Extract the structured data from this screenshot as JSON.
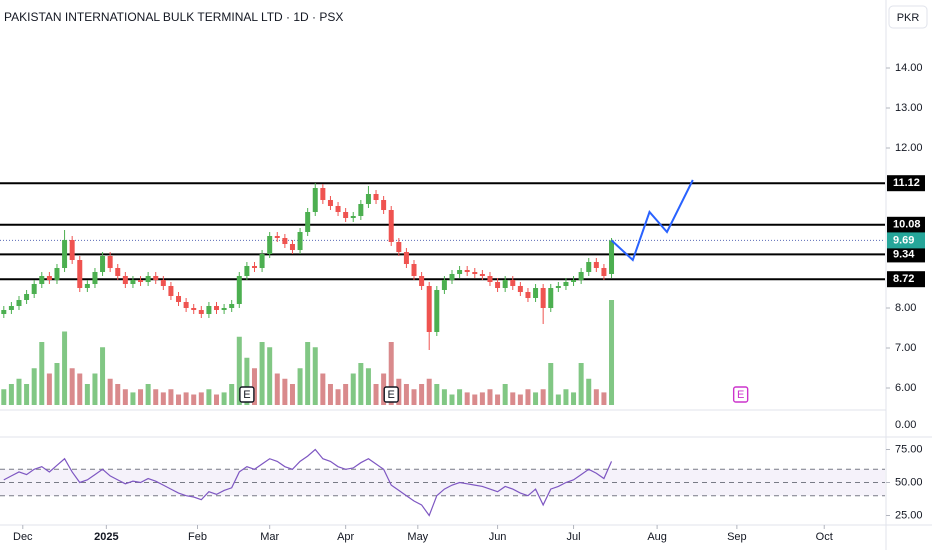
{
  "chart_data": {
    "type": "candlestick",
    "title": "PAKISTAN INTERNATIONAL BULK TERMINAL LTD · 1D · PSX",
    "currency": "PKR",
    "up_color": "#4caf50",
    "down_color": "#ef5350",
    "volume_up_color": "#81c784",
    "volume_down_color": "#d98a8c",
    "rsi_color": "#7e57c2",
    "level_color": "#000000",
    "last_color": "#26a69a",
    "projection_color": "#2962ff",
    "xlim": [
      -0.5,
      116
    ],
    "xticks": [
      {
        "value": 2.5,
        "label": "Dec"
      },
      {
        "value": 13.5,
        "label": "2025"
      },
      {
        "value": 25.5,
        "label": "Feb"
      },
      {
        "value": 35,
        "label": "Mar"
      },
      {
        "value": 45,
        "label": "Apr"
      },
      {
        "value": 54.5,
        "label": "May"
      },
      {
        "value": 65,
        "label": "Jun"
      },
      {
        "value": 75,
        "label": "Jul"
      },
      {
        "value": 86,
        "label": "Aug"
      },
      {
        "value": 96.5,
        "label": "Sep"
      },
      {
        "value": 108,
        "label": "Oct"
      }
    ],
    "ylim": [
      5.5,
      14.95
    ],
    "yticks": [
      {
        "value": 14,
        "label": "14.00"
      },
      {
        "value": 13,
        "label": "13.00"
      },
      {
        "value": 12,
        "label": "12.00"
      },
      {
        "value": 8,
        "label": "8.00"
      },
      {
        "value": 7,
        "label": "7.00"
      },
      {
        "value": 6,
        "label": "6.00"
      }
    ],
    "volume_ylim": [
      0,
      1
    ],
    "volume_ticks": [
      {
        "value": 0,
        "label": "0.00"
      }
    ],
    "rsi_ylim": [
      17.8,
      82.2
    ],
    "rsi_ticks": [
      {
        "value": 75,
        "label": "75.00"
      },
      {
        "value": 50,
        "label": "50.00"
      },
      {
        "value": 25,
        "label": "25.00"
      }
    ],
    "rsi_bands": [
      40,
      50,
      60
    ],
    "levels": [
      11.12,
      10.08,
      9.34,
      8.72
    ],
    "last": 9.69,
    "open": [
      7.85,
      7.95,
      8.05,
      8.2,
      8.35,
      8.6,
      8.8,
      8.7,
      9.0,
      9.7,
      9.2,
      8.5,
      8.6,
      8.9,
      9.3,
      9.0,
      8.8,
      8.6,
      8.7,
      8.65,
      8.8,
      8.7,
      8.55,
      8.3,
      8.15,
      8.0,
      7.95,
      7.85,
      8.05,
      7.95,
      8.0,
      8.1,
      8.8,
      9.05,
      9.0,
      9.35,
      9.8,
      9.75,
      9.6,
      9.45,
      9.9,
      10.4,
      11.0,
      10.7,
      10.55,
      10.4,
      10.25,
      10.3,
      10.6,
      10.85,
      10.7,
      10.45,
      9.65,
      9.4,
      9.1,
      8.8,
      8.55,
      7.4,
      8.45,
      8.7,
      8.85,
      8.95,
      8.9,
      8.85,
      8.8,
      8.65,
      8.5,
      8.7,
      8.55,
      8.4,
      8.25,
      8.5,
      8.0,
      8.5,
      8.55,
      8.65,
      8.7,
      8.9,
      9.15,
      9.0,
      8.85
    ],
    "high": [
      8.05,
      8.15,
      8.3,
      8.45,
      8.7,
      8.9,
      8.9,
      9.1,
      9.95,
      9.8,
      9.3,
      8.7,
      9.0,
      9.4,
      9.4,
      9.1,
      8.9,
      8.8,
      8.8,
      8.9,
      8.9,
      8.8,
      8.65,
      8.4,
      8.25,
      8.1,
      8.05,
      8.15,
      8.15,
      8.1,
      8.2,
      8.9,
      9.15,
      9.15,
      9.45,
      9.9,
      9.9,
      9.85,
      9.7,
      10.0,
      10.5,
      11.12,
      11.1,
      10.8,
      10.65,
      10.5,
      10.4,
      10.7,
      11.05,
      10.95,
      10.8,
      10.55,
      9.75,
      9.5,
      9.2,
      8.9,
      8.65,
      8.55,
      8.8,
      8.95,
      9.05,
      9.05,
      9.0,
      8.95,
      8.9,
      8.75,
      8.8,
      8.8,
      8.65,
      8.5,
      8.6,
      8.6,
      8.6,
      8.65,
      8.75,
      8.8,
      9.0,
      9.25,
      9.25,
      9.1,
      9.75
    ],
    "low": [
      7.75,
      7.85,
      7.95,
      8.1,
      8.25,
      8.5,
      8.6,
      8.6,
      8.9,
      9.1,
      8.4,
      8.4,
      8.5,
      8.8,
      8.9,
      8.7,
      8.5,
      8.5,
      8.55,
      8.55,
      8.6,
      8.45,
      8.2,
      8.05,
      7.9,
      7.85,
      7.75,
      7.75,
      7.85,
      7.85,
      7.9,
      8.0,
      8.7,
      8.9,
      8.9,
      9.25,
      9.65,
      9.5,
      9.35,
      9.35,
      9.8,
      10.3,
      10.6,
      10.45,
      10.3,
      10.15,
      10.15,
      10.2,
      10.5,
      10.6,
      10.35,
      9.55,
      9.3,
      9.0,
      8.7,
      8.45,
      6.95,
      7.3,
      8.35,
      8.6,
      8.75,
      8.8,
      8.75,
      8.7,
      8.55,
      8.4,
      8.4,
      8.45,
      8.3,
      8.15,
      8.15,
      7.6,
      7.9,
      8.4,
      8.45,
      8.55,
      8.6,
      8.8,
      8.9,
      8.7,
      8.75
    ],
    "close": [
      7.95,
      8.05,
      8.2,
      8.35,
      8.6,
      8.8,
      8.7,
      9.0,
      9.7,
      9.2,
      8.5,
      8.6,
      8.9,
      9.3,
      9.0,
      8.8,
      8.6,
      8.7,
      8.65,
      8.8,
      8.7,
      8.55,
      8.3,
      8.15,
      8.0,
      7.95,
      7.85,
      8.05,
      7.95,
      8.0,
      8.1,
      8.8,
      9.05,
      9.0,
      9.35,
      9.8,
      9.75,
      9.6,
      9.45,
      9.9,
      10.4,
      11.0,
      10.7,
      10.55,
      10.4,
      10.25,
      10.3,
      10.6,
      10.85,
      10.7,
      10.45,
      9.65,
      9.4,
      9.1,
      8.8,
      8.55,
      7.4,
      8.45,
      8.7,
      8.85,
      8.95,
      8.9,
      8.85,
      8.8,
      8.65,
      8.5,
      8.7,
      8.55,
      8.4,
      8.25,
      8.5,
      8.0,
      8.5,
      8.55,
      8.65,
      8.7,
      8.9,
      9.15,
      9.0,
      8.8,
      9.69
    ],
    "volume": [
      0.15,
      0.2,
      0.25,
      0.2,
      0.35,
      0.6,
      0.3,
      0.4,
      0.7,
      0.35,
      0.3,
      0.2,
      0.3,
      0.55,
      0.25,
      0.2,
      0.15,
      0.12,
      0.15,
      0.2,
      0.15,
      0.12,
      0.15,
      0.1,
      0.12,
      0.1,
      0.12,
      0.15,
      0.1,
      0.12,
      0.2,
      0.65,
      0.45,
      0.35,
      0.6,
      0.55,
      0.3,
      0.25,
      0.2,
      0.35,
      0.6,
      0.55,
      0.3,
      0.2,
      0.15,
      0.2,
      0.3,
      0.4,
      0.35,
      0.2,
      0.3,
      0.6,
      0.25,
      0.2,
      0.15,
      0.2,
      0.25,
      0.2,
      0.15,
      0.1,
      0.15,
      0.12,
      0.1,
      0.12,
      0.15,
      0.1,
      0.2,
      0.12,
      0.1,
      0.15,
      0.12,
      0.15,
      0.4,
      0.1,
      0.15,
      0.12,
      0.4,
      0.25,
      0.15,
      0.12,
      1.0
    ],
    "rsi": [
      52,
      55,
      58,
      56,
      60,
      62,
      58,
      63,
      68,
      58,
      50,
      52,
      56,
      60,
      55,
      52,
      49,
      51,
      50,
      53,
      51,
      48,
      45,
      42,
      40,
      39,
      37,
      43,
      41,
      44,
      46,
      58,
      62,
      60,
      64,
      68,
      66,
      62,
      60,
      66,
      70,
      75,
      68,
      66,
      62,
      60,
      61,
      65,
      68,
      64,
      60,
      48,
      44,
      40,
      36,
      33,
      25,
      40,
      45,
      48,
      50,
      49,
      48,
      47,
      45,
      43,
      47,
      45,
      42,
      40,
      45,
      33,
      45,
      47,
      50,
      52,
      56,
      60,
      57,
      53,
      66
    ],
    "projection": {
      "x": [
        80,
        82.8,
        85,
        87.3,
        90.7
      ],
      "y": [
        9.69,
        9.2,
        10.4,
        9.9,
        11.2
      ]
    },
    "events": [
      {
        "x": 32,
        "label": "E"
      },
      {
        "x": 51,
        "label": "E"
      },
      {
        "x": 97,
        "label": "E"
      }
    ]
  }
}
